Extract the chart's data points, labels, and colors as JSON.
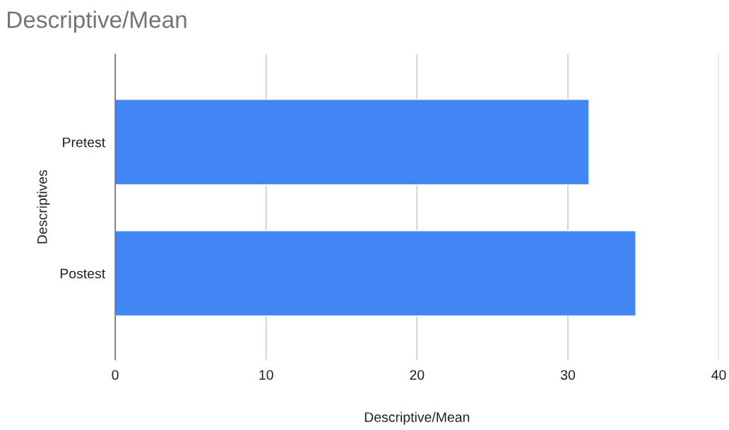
{
  "chart_data": {
    "type": "bar",
    "orientation": "horizontal",
    "title": "Descriptive/Mean",
    "xlabel": "Descriptive/Mean",
    "ylabel": "Descriptives",
    "categories": [
      "Pretest",
      "Postest"
    ],
    "series": [
      {
        "color": "#4285f4",
        "values": [
          31.4,
          34.5
        ]
      }
    ],
    "xlim": [
      0,
      40
    ],
    "xticks": [
      0,
      10,
      20,
      30,
      40
    ],
    "grid": "x"
  }
}
